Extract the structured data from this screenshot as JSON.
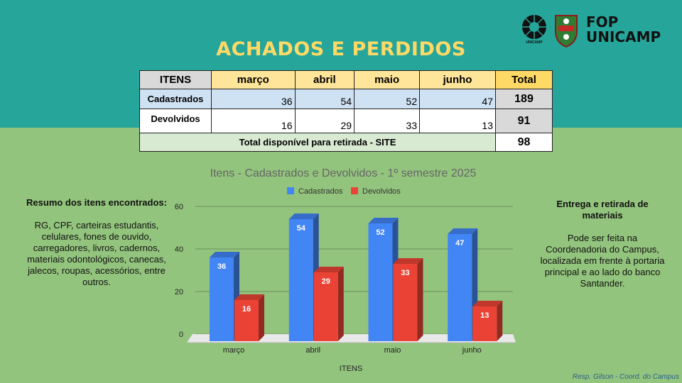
{
  "title": "ACHADOS E PERDIDOS",
  "logos": {
    "unicamp_text": "UNICAMP",
    "fop_line1": "FOP",
    "fop_line2": "UNICAMP"
  },
  "table": {
    "headers": [
      "ITENS",
      "março",
      "abril",
      "maio",
      "junho",
      "Total"
    ],
    "rows": [
      {
        "label": "Cadastrados",
        "values": [
          "36",
          "54",
          "52",
          "47"
        ],
        "total": "189"
      },
      {
        "label": "Devolvidos",
        "values": [
          "16",
          "29",
          "33",
          "13"
        ],
        "total": "91"
      }
    ],
    "available_label": "Total disponível para retirada - SITE",
    "available_value": "98"
  },
  "left_panel": {
    "heading": "Resumo dos itens encontrados:",
    "body": "RG, CPF, carteiras estudantis, celulares, fones de ouvido, carregadores, livros, cadernos, materiais odontológicos, canecas, jalecos, roupas, acessórios, entre outros."
  },
  "right_panel": {
    "heading": "Entrega e retirada de materiais",
    "body": "Pode ser feita na Coordenadoria do Campus, localizada em frente à portaria principal e ao lado do banco Santander."
  },
  "footer": "Resp. Gilson - Coord. do Campus",
  "chart_data": {
    "type": "bar",
    "title": "Itens - Cadastrados e Devolvidos - 1º semestre 2025",
    "xlabel": "ITENS",
    "ylabel": "",
    "categories": [
      "março",
      "abril",
      "maio",
      "junho"
    ],
    "series": [
      {
        "name": "Cadastrados",
        "values": [
          36,
          54,
          52,
          47
        ],
        "color": "#4285f4"
      },
      {
        "name": "Devolvidos",
        "values": [
          16,
          29,
          33,
          13
        ],
        "color": "#ea4335"
      }
    ],
    "ylim": [
      0,
      60
    ],
    "yticks": [
      0,
      20,
      40,
      60
    ],
    "grid": true,
    "legend": "top",
    "style": "3d"
  }
}
